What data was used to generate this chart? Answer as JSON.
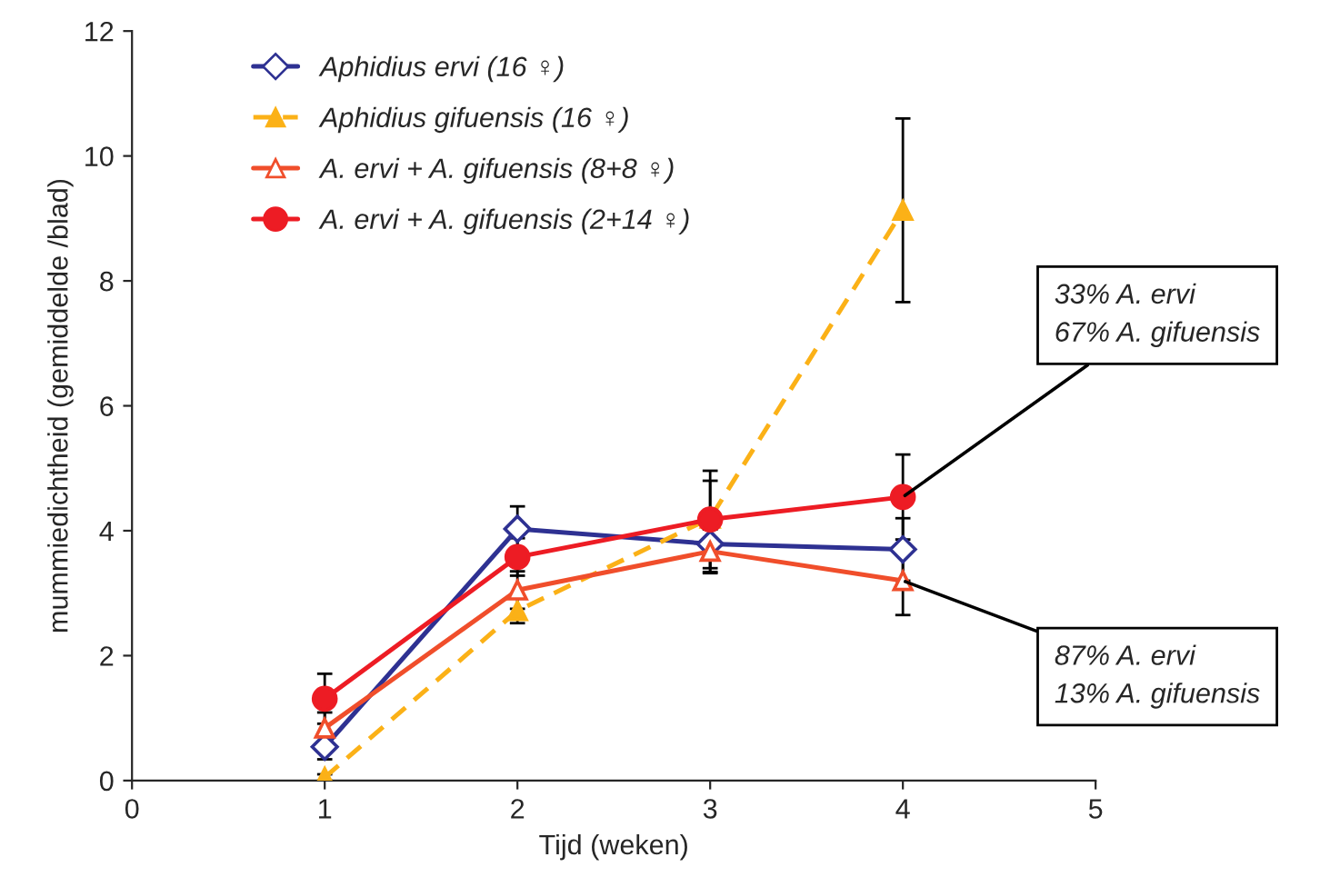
{
  "chart_data": {
    "type": "line",
    "xlabel": "Tijd (weken)",
    "ylabel": "mummiedichtheid (gemiddelde /blad)",
    "x": [
      1,
      2,
      3,
      4
    ],
    "xlim": [
      0,
      5
    ],
    "xticks": [
      0,
      1,
      2,
      3,
      4,
      5
    ],
    "ylim": [
      0,
      12
    ],
    "yticks": [
      0,
      2,
      4,
      6,
      8,
      10,
      12
    ],
    "grid": false,
    "legend": "top left",
    "series": [
      {
        "name": "Aphidius ervi (16 ♀)",
        "color": "#2e3192",
        "marker": "diamond",
        "line_style": "solid",
        "values": [
          0.54,
          4.03,
          3.79,
          3.7
        ],
        "errors": [
          0.2,
          0.36,
          0.45,
          0.5
        ]
      },
      {
        "name": "Aphidius gifuensis (16 ♀)",
        "color": "#fbb117",
        "marker": "triangle",
        "line_style": "dashed",
        "values": [
          0.05,
          2.72,
          4.2,
          9.13
        ],
        "errors": [
          0.05,
          0.2,
          0.6,
          1.47
        ]
      },
      {
        "name": "A. ervi + A. gifuensis (8+8 ♀)",
        "color": "#f04e2b",
        "marker": "triangle",
        "line_style": "solid",
        "values": [
          0.84,
          3.05,
          3.67,
          3.2
        ],
        "errors": [
          0.25,
          0.3,
          0.35,
          0.55
        ]
      },
      {
        "name": "A. ervi + A. gifuensis (2+14 ♀)",
        "color": "#ed1c24",
        "marker": "circle",
        "line_style": "solid",
        "values": [
          1.31,
          3.58,
          4.18,
          4.54
        ],
        "errors": [
          0.4,
          0.3,
          0.78,
          0.68
        ]
      }
    ],
    "annotations": [
      {
        "text": "33% A. ervi\n67% A. gifuensis",
        "x": 4,
        "y": 4.54
      },
      {
        "text": "87% A. ervi\n13% A. gifuensis",
        "x": 4,
        "y": 3.2
      }
    ]
  }
}
